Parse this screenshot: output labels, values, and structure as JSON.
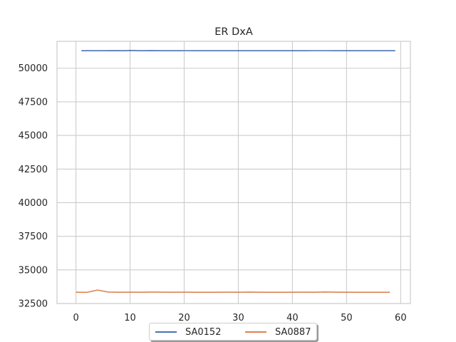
{
  "chart_data": {
    "type": "line",
    "title": "ER DxA",
    "xlabel": "",
    "ylabel": "",
    "xlim": [
      -3.5,
      61.8
    ],
    "ylim": [
      32500,
      52000
    ],
    "xticks": [
      0,
      10,
      20,
      30,
      40,
      50,
      60
    ],
    "yticks": [
      32500,
      35000,
      37500,
      40000,
      42500,
      45000,
      47500,
      50000
    ],
    "grid": true,
    "legend_position": "bottom-center",
    "series": [
      {
        "name": "SA0152",
        "color": "#4c72b0",
        "x": [
          1,
          3,
          5,
          7,
          9,
          10,
          12,
          14,
          16,
          18,
          20,
          22,
          24,
          26,
          28,
          30,
          32,
          34,
          36,
          38,
          40,
          42,
          44,
          46,
          48,
          50,
          52,
          54,
          56,
          58,
          59
        ],
        "values": [
          51300,
          51300,
          51300,
          51310,
          51300,
          51320,
          51300,
          51310,
          51300,
          51300,
          51305,
          51300,
          51300,
          51300,
          51300,
          51300,
          51300,
          51300,
          51300,
          51300,
          51300,
          51300,
          51305,
          51305,
          51300,
          51300,
          51300,
          51300,
          51300,
          51300,
          51300
        ]
      },
      {
        "name": "SA0887",
        "color": "#dd8452",
        "x": [
          0,
          2,
          4,
          6,
          8,
          10,
          12,
          14,
          16,
          18,
          20,
          22,
          24,
          26,
          28,
          30,
          32,
          34,
          36,
          38,
          40,
          42,
          44,
          46,
          48,
          50,
          52,
          54,
          56,
          58
        ],
        "values": [
          33340,
          33330,
          33500,
          33350,
          33340,
          33345,
          33340,
          33350,
          33345,
          33340,
          33345,
          33340,
          33340,
          33340,
          33345,
          33340,
          33350,
          33340,
          33340,
          33340,
          33340,
          33345,
          33340,
          33360,
          33345,
          33340,
          33340,
          33340,
          33340,
          33340
        ]
      }
    ]
  }
}
